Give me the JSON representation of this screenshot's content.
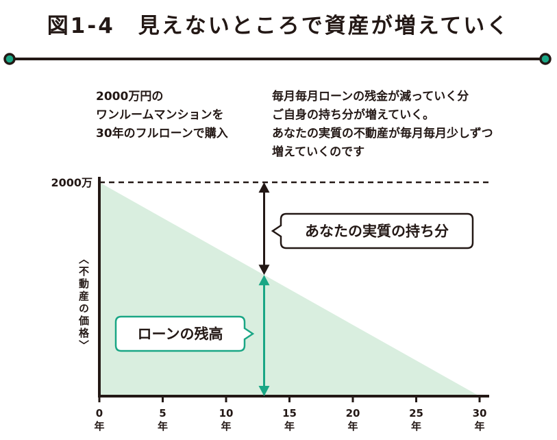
{
  "header": {
    "title": "図1-4　見えないところで資産が増えていく"
  },
  "left_note": {
    "lines": [
      "2000万円の",
      "ワンルームマンションを",
      "30年のフルローンで購入"
    ]
  },
  "right_note": {
    "lines": [
      "毎月毎月ローンの残金が減っていく分",
      "ご自身の持ち分が増えていく。",
      "あなたの実質の不動産が毎月毎月少しずつ",
      "増えていくのです"
    ]
  },
  "chart_data": {
    "type": "area",
    "xlabel": "年",
    "ylabel": "〈不動産の価格〉",
    "ymax_label": "2000万",
    "x": [
      0,
      30
    ],
    "loan_balance": [
      2000,
      0
    ],
    "xlim": [
      0,
      30
    ],
    "ylim": [
      0,
      2000
    ],
    "x_ticks": [
      {
        "value": 0,
        "label": "0",
        "unit": "年"
      },
      {
        "value": 5,
        "label": "5",
        "unit": "年"
      },
      {
        "value": 10,
        "label": "10",
        "unit": "年"
      },
      {
        "value": 15,
        "label": "15",
        "unit": "年"
      },
      {
        "value": 20,
        "label": "20",
        "unit": "年"
      },
      {
        "value": 25,
        "label": "25",
        "unit": "年"
      },
      {
        "value": 30,
        "label": "30",
        "unit": "年"
      }
    ],
    "marker_year": 13,
    "annotations": {
      "equity": "あなたの実質の持ち分",
      "loan": "ローンの残高"
    }
  },
  "colors": {
    "dark": "#231815",
    "accent": "#1aa685",
    "fill": "#d9eedf"
  }
}
